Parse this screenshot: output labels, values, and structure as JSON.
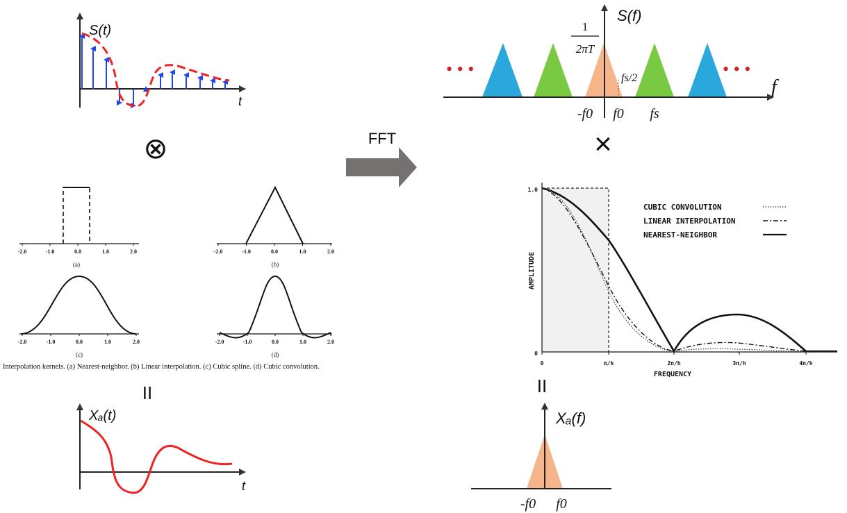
{
  "time_domain": {
    "sampled_label": "S(t)",
    "interp_label": "Xₐ(t)",
    "t_axis": "t"
  },
  "operators": {
    "convolve": "⊗",
    "multiply": "×",
    "equals_left": "II",
    "equals_right": "II"
  },
  "fft_label": "FFT",
  "spectrum": {
    "label": "S(f)",
    "axis_label": "f",
    "height_num": "1",
    "height_den": "2πT",
    "fs_half": "fs/2",
    "neg_f0": "-f0",
    "f0": "f0",
    "fs": "fs",
    "dots": "• • •"
  },
  "bandlimited": {
    "label": "Xₐ(f)",
    "neg_f0": "-f0",
    "f0": "f0"
  },
  "kernels": {
    "caption": "Interpolation kernels. (a) Nearest-neighbor. (b) Linear interpolation. (c) Cubic spline. (d) Cubic convolution.",
    "tick_labels": [
      "-2.0",
      "-1.0",
      "0.0",
      "1.0",
      "2.0"
    ],
    "panel_labels": [
      "(a)",
      "(b)",
      "(c)",
      "(d)"
    ]
  },
  "response": {
    "ylabel": "AMPLITUDE",
    "xlabel": "FREQUENCY",
    "y_ticks": [
      "0",
      "1.0"
    ],
    "x_ticks": [
      "0",
      "π/h",
      "2π/h",
      "3π/h",
      "4π/h"
    ],
    "legend": [
      "CUBIC CONVOLUTION",
      "LINEAR INTERPOLATION",
      "NEAREST-NEIGHBOR"
    ]
  },
  "colors": {
    "sample": "#2244ee",
    "envelope": "#ee2222",
    "blue_tri": "#2aa7db",
    "green_tri": "#7ac943",
    "orange_tri": "#f5b48a",
    "dot": "#cc2222",
    "arrow": "#767171"
  }
}
